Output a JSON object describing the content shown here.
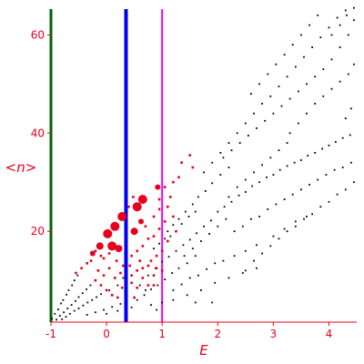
{
  "chart_data": {
    "type": "scatter",
    "title": "",
    "xlabel": "E",
    "ylabel": "<n>",
    "xlim": [
      -1,
      4.5
    ],
    "ylim": [
      1.5,
      66
    ],
    "grid": false,
    "legend": "none",
    "x_ticks": [
      -1,
      0,
      1,
      2,
      3,
      4
    ],
    "x_tick_labels": [
      "-1",
      "0",
      "1",
      "2",
      "3",
      "4"
    ],
    "y_ticks": [
      20,
      40,
      60
    ],
    "y_tick_labels": [
      "20",
      "40",
      "60"
    ],
    "colors": {
      "axis": "#e8001c",
      "black_points": "#000000",
      "red_points": "#e8001c",
      "line_green": "#006400",
      "line_blue": "#0000ee",
      "line_magenta": "#ee00ee"
    },
    "vertical_lines": [
      {
        "x": -1.0,
        "color": "#006400"
      },
      {
        "x": 0.35,
        "color": "#0000ee"
      },
      {
        "x": 1.0,
        "color": "#ee00ee"
      }
    ],
    "big_red_points": [
      {
        "x": -0.12,
        "y": 17,
        "r": 4
      },
      {
        "x": 0.02,
        "y": 19.5,
        "r": 5
      },
      {
        "x": 0.1,
        "y": 17,
        "r": 5
      },
      {
        "x": 0.15,
        "y": 21,
        "r": 5
      },
      {
        "x": 0.22,
        "y": 16.5,
        "r": 4
      },
      {
        "x": 0.28,
        "y": 23,
        "r": 5
      },
      {
        "x": 0.5,
        "y": 20,
        "r": 4
      },
      {
        "x": 0.55,
        "y": 25,
        "r": 5
      },
      {
        "x": 0.65,
        "y": 26.5,
        "r": 5
      },
      {
        "x": 0.62,
        "y": 22,
        "r": 3
      },
      {
        "x": -0.25,
        "y": 15.5,
        "r": 3
      },
      {
        "x": 0.92,
        "y": 29,
        "r": 3
      }
    ],
    "series": [
      {
        "name": "",
        "color": "#000000",
        "points": [
          [
            -0.98,
            2.2
          ],
          [
            -0.93,
            3.2
          ],
          [
            -0.87,
            4.1
          ],
          [
            -0.82,
            5.3
          ],
          [
            -0.78,
            6.0
          ],
          [
            -0.72,
            7.1
          ],
          [
            -0.68,
            8.0
          ],
          [
            -0.62,
            9.0
          ],
          [
            -0.58,
            10.0
          ],
          [
            -0.52,
            11.0
          ],
          [
            -0.9,
            2.0
          ],
          [
            -0.84,
            2.8
          ],
          [
            -0.77,
            3.5
          ],
          [
            -0.7,
            4.3
          ],
          [
            -0.63,
            5.0
          ],
          [
            -0.56,
            5.8
          ],
          [
            -0.5,
            6.6
          ],
          [
            -0.43,
            7.4
          ],
          [
            -0.36,
            8.2
          ],
          [
            -0.29,
            9.0
          ],
          [
            -0.8,
            2.1
          ],
          [
            -0.73,
            2.6
          ],
          [
            -0.66,
            3.2
          ],
          [
            -0.58,
            3.8
          ],
          [
            -0.5,
            4.3
          ],
          [
            -0.42,
            4.9
          ],
          [
            -0.34,
            5.5
          ],
          [
            -0.26,
            6.0
          ],
          [
            -0.18,
            6.6
          ],
          [
            -0.1,
            7.2
          ],
          [
            -0.35,
            3.0
          ],
          [
            -0.2,
            3.5
          ],
          [
            -0.05,
            4.0
          ],
          [
            0.1,
            4.6
          ],
          [
            0.25,
            5.2
          ],
          [
            0.0,
            3.2
          ],
          [
            0.2,
            3.8
          ],
          [
            0.3,
            10.5
          ],
          [
            0.2,
            9.0
          ],
          [
            0.05,
            8.0
          ],
          [
            0.45,
            4.5
          ],
          [
            0.55,
            6.0
          ],
          [
            0.68,
            7.0
          ],
          [
            0.8,
            8.2
          ],
          [
            0.92,
            9.0
          ],
          [
            1.05,
            10.2
          ],
          [
            1.18,
            11.5
          ],
          [
            1.3,
            12.5
          ],
          [
            1.45,
            13.5
          ],
          [
            1.6,
            15.0
          ],
          [
            0.75,
            11.0
          ],
          [
            0.88,
            12.5
          ],
          [
            1.0,
            13.8
          ],
          [
            1.12,
            14.8
          ],
          [
            1.25,
            16.0
          ],
          [
            1.38,
            17.2
          ],
          [
            1.5,
            18.3
          ],
          [
            1.62,
            19.6
          ],
          [
            1.75,
            21.0
          ],
          [
            1.88,
            22.2
          ],
          [
            1.1,
            20.0
          ],
          [
            1.2,
            21.3
          ],
          [
            1.3,
            22.5
          ],
          [
            1.42,
            24.0
          ],
          [
            1.55,
            25.5
          ],
          [
            1.65,
            27.0
          ],
          [
            1.78,
            28.2
          ],
          [
            1.9,
            29.8
          ],
          [
            2.05,
            31.5
          ],
          [
            2.2,
            33.0
          ],
          [
            1.2,
            8.0
          ],
          [
            1.35,
            9.2
          ],
          [
            1.5,
            10.5
          ],
          [
            1.65,
            11.0
          ],
          [
            1.8,
            12.3
          ],
          [
            1.95,
            13.5
          ],
          [
            2.1,
            14.0
          ],
          [
            2.3,
            15.0
          ],
          [
            2.5,
            16.0
          ],
          [
            2.7,
            17.2
          ],
          [
            1.0,
            5.5
          ],
          [
            1.2,
            6.0
          ],
          [
            1.45,
            7.0
          ],
          [
            1.7,
            8.0
          ],
          [
            1.95,
            9.5
          ],
          [
            2.2,
            10.5
          ],
          [
            2.45,
            11.5
          ],
          [
            2.7,
            12.5
          ],
          [
            2.0,
            24.0
          ],
          [
            2.12,
            25.0
          ],
          [
            2.25,
            26.0
          ],
          [
            2.38,
            27.3
          ],
          [
            2.5,
            28.0
          ],
          [
            2.62,
            29.2
          ],
          [
            2.75,
            30.0
          ],
          [
            2.88,
            31.0
          ],
          [
            3.0,
            31.5
          ],
          [
            3.12,
            32.5
          ],
          [
            3.25,
            33.3
          ],
          [
            3.38,
            34.0
          ],
          [
            3.5,
            34.5
          ],
          [
            3.62,
            35.4
          ],
          [
            3.75,
            36.0
          ],
          [
            3.88,
            36.8
          ],
          [
            4.0,
            37.5
          ],
          [
            4.12,
            38.2
          ],
          [
            4.25,
            39.0
          ],
          [
            4.38,
            39.6
          ],
          [
            2.3,
            20.0
          ],
          [
            2.45,
            21.0
          ],
          [
            2.6,
            22.5
          ],
          [
            2.75,
            23.0
          ],
          [
            2.9,
            24.5
          ],
          [
            3.05,
            25.5
          ],
          [
            3.2,
            26.5
          ],
          [
            3.35,
            27.5
          ],
          [
            3.5,
            28.5
          ],
          [
            3.65,
            29.5
          ],
          [
            3.8,
            30.5
          ],
          [
            3.95,
            31.5
          ],
          [
            4.1,
            32.5
          ],
          [
            4.25,
            33.0
          ],
          [
            4.4,
            34.0
          ],
          [
            2.1,
            35.0
          ],
          [
            2.25,
            36.5
          ],
          [
            2.4,
            38.0
          ],
          [
            2.55,
            39.5
          ],
          [
            2.7,
            41.0
          ],
          [
            2.85,
            42.5
          ],
          [
            3.0,
            44.0
          ],
          [
            3.15,
            45.5
          ],
          [
            3.3,
            47.0
          ],
          [
            3.45,
            48.5
          ],
          [
            3.6,
            50.0
          ],
          [
            3.75,
            51.5
          ],
          [
            3.9,
            53.0
          ],
          [
            4.05,
            55.0
          ],
          [
            4.2,
            57.5
          ],
          [
            4.35,
            60.0
          ],
          [
            4.45,
            63.0
          ],
          [
            2.6,
            48.0
          ],
          [
            2.75,
            50.0
          ],
          [
            2.9,
            52.0
          ],
          [
            3.05,
            54.0
          ],
          [
            3.2,
            56.0
          ],
          [
            3.35,
            58.0
          ],
          [
            3.5,
            60.0
          ],
          [
            3.65,
            62.0
          ],
          [
            3.8,
            64.0
          ],
          [
            3.3,
            40.0
          ],
          [
            3.45,
            42.0
          ],
          [
            3.6,
            44.0
          ],
          [
            3.75,
            46.0
          ],
          [
            3.9,
            47.5
          ],
          [
            4.05,
            49.0
          ],
          [
            4.2,
            50.5
          ],
          [
            4.35,
            52.0
          ],
          [
            4.45,
            54.0
          ],
          [
            4.05,
            60.0
          ],
          [
            4.2,
            62.0
          ],
          [
            4.32,
            64.0
          ],
          [
            4.45,
            65.5
          ],
          [
            4.4,
            45.0
          ],
          [
            4.3,
            43.0
          ],
          [
            2.5,
            12.0
          ],
          [
            2.65,
            14.0
          ],
          [
            2.8,
            15.5
          ],
          [
            2.95,
            17.0
          ],
          [
            3.1,
            18.5
          ],
          [
            3.25,
            20.0
          ],
          [
            3.4,
            21.0
          ],
          [
            3.55,
            22.5
          ],
          [
            3.7,
            23.5
          ],
          [
            3.85,
            25.0
          ],
          [
            4.0,
            26.0
          ],
          [
            4.15,
            27.5
          ],
          [
            4.3,
            28.5
          ],
          [
            4.45,
            30.0
          ],
          [
            3.0,
            19.0
          ],
          [
            3.2,
            20.5
          ],
          [
            3.4,
            22.0
          ],
          [
            3.6,
            23.0
          ],
          [
            0.85,
            16.5
          ],
          [
            0.95,
            17.5
          ],
          [
            1.05,
            18.5
          ],
          [
            1.15,
            19.0
          ],
          [
            1.25,
            20.0
          ],
          [
            1.35,
            21.5
          ],
          [
            1.48,
            23.0
          ],
          [
            1.6,
            24.0
          ],
          [
            1.4,
            15.0
          ],
          [
            1.55,
            16.5
          ],
          [
            1.7,
            18.0
          ],
          [
            1.85,
            19.5
          ],
          [
            2.0,
            21.0
          ],
          [
            2.15,
            22.5
          ],
          [
            0.6,
            9.0
          ],
          [
            0.7,
            8.0
          ],
          [
            0.8,
            5.0
          ],
          [
            0.9,
            4.0
          ],
          [
            1.6,
            5.5
          ],
          [
            1.9,
            5.5
          ],
          [
            2.2,
            27.0
          ],
          [
            2.35,
            29.0
          ],
          [
            2.5,
            30.5
          ],
          [
            2.65,
            32.0
          ],
          [
            2.8,
            33.5
          ],
          [
            2.95,
            35.0
          ],
          [
            3.1,
            36.5
          ],
          [
            3.25,
            38.0
          ],
          [
            1.75,
            32.0
          ],
          [
            1.9,
            34.0
          ],
          [
            2.05,
            36.0
          ],
          [
            2.2,
            38.0
          ],
          [
            2.35,
            40.0
          ],
          [
            2.5,
            42.0
          ],
          [
            2.65,
            44.0
          ],
          [
            2.8,
            46.0
          ],
          [
            2.95,
            47.5
          ],
          [
            3.1,
            49.5
          ],
          [
            3.25,
            51.5
          ],
          [
            3.4,
            53.5
          ],
          [
            3.55,
            55.5
          ],
          [
            3.7,
            57.5
          ],
          [
            3.85,
            59.5
          ],
          [
            4.0,
            61.5
          ],
          [
            4.15,
            63.5
          ],
          [
            4.3,
            65.0
          ]
        ]
      },
      {
        "name": "",
        "color": "#e8001c",
        "points": [
          [
            -0.55,
            11.5
          ],
          [
            -0.45,
            12.5
          ],
          [
            -0.35,
            13.5
          ],
          [
            -0.28,
            14.0
          ],
          [
            -0.2,
            16.0
          ],
          [
            -0.1,
            15.0
          ],
          [
            -0.05,
            14.5
          ],
          [
            0.05,
            15.5
          ],
          [
            -0.15,
            12.0
          ],
          [
            -0.05,
            11.0
          ],
          [
            0.05,
            12.5
          ],
          [
            0.15,
            10.5
          ],
          [
            0.25,
            11.5
          ],
          [
            0.3,
            13.0
          ],
          [
            0.18,
            14.0
          ],
          [
            -0.2,
            10.0
          ],
          [
            -0.1,
            9.0
          ],
          [
            0.0,
            8.0
          ],
          [
            0.1,
            7.0
          ],
          [
            0.2,
            6.5
          ],
          [
            0.28,
            8.5
          ],
          [
            0.45,
            11.0
          ],
          [
            0.55,
            12.0
          ],
          [
            0.65,
            12.5
          ],
          [
            0.75,
            13.0
          ],
          [
            0.8,
            14.0
          ],
          [
            0.9,
            15.0
          ],
          [
            1.0,
            16.0
          ],
          [
            0.95,
            20.5
          ],
          [
            0.45,
            15.0
          ],
          [
            0.55,
            16.0
          ],
          [
            0.65,
            17.0
          ],
          [
            0.75,
            18.5
          ],
          [
            0.85,
            19.0
          ],
          [
            0.7,
            21.0
          ],
          [
            0.85,
            23.0
          ],
          [
            0.95,
            24.5
          ],
          [
            0.45,
            9.5
          ],
          [
            0.55,
            8.5
          ],
          [
            0.65,
            10.5
          ],
          [
            0.75,
            9.0
          ],
          [
            0.85,
            11.0
          ],
          [
            0.9,
            12.5
          ],
          [
            1.05,
            22.0
          ],
          [
            1.1,
            25.0
          ],
          [
            1.15,
            27.0
          ],
          [
            1.2,
            30.0
          ],
          [
            1.3,
            31.0
          ],
          [
            1.35,
            34.0
          ],
          [
            1.5,
            35.5
          ],
          [
            1.55,
            33.0
          ],
          [
            0.95,
            26.5
          ],
          [
            1.05,
            29.0
          ],
          [
            1.2,
            23.0
          ],
          [
            1.25,
            20.0
          ],
          [
            1.1,
            18.0
          ],
          [
            1.0,
            12.0
          ],
          [
            0.85,
            9.0
          ],
          [
            0.4,
            25.0
          ],
          [
            0.48,
            27.0
          ],
          [
            0.5,
            6.5
          ],
          [
            0.42,
            13.0
          ],
          [
            0.6,
            14.0
          ]
        ]
      }
    ]
  }
}
